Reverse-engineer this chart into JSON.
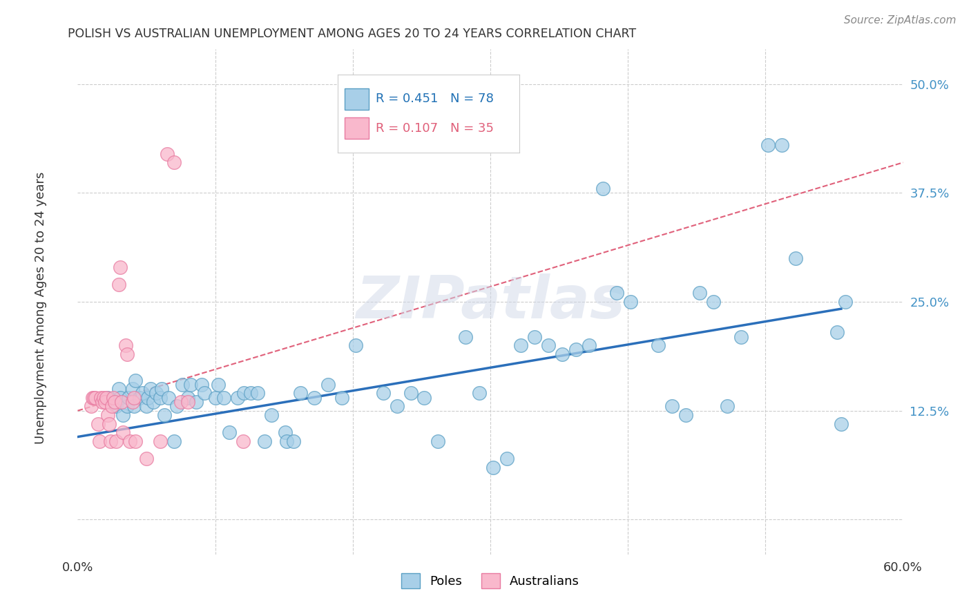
{
  "title": "POLISH VS AUSTRALIAN UNEMPLOYMENT AMONG AGES 20 TO 24 YEARS CORRELATION CHART",
  "source": "Source: ZipAtlas.com",
  "ylabel": "Unemployment Among Ages 20 to 24 years",
  "xlim": [
    0.0,
    0.6
  ],
  "ylim": [
    -0.04,
    0.54
  ],
  "xticks": [
    0.0,
    0.1,
    0.2,
    0.3,
    0.4,
    0.5,
    0.6
  ],
  "xticklabels": [
    "0.0%",
    "",
    "",
    "",
    "",
    "",
    "60.0%"
  ],
  "yticks": [
    0.0,
    0.125,
    0.25,
    0.375,
    0.5
  ],
  "yticklabels": [
    "",
    "12.5%",
    "25.0%",
    "37.5%",
    "50.0%"
  ],
  "background_color": "#ffffff",
  "grid_color": "#cccccc",
  "watermark": "ZIPatlas",
  "poles_color": "#a8cfe8",
  "poles_edge_color": "#5a9fc4",
  "australians_color": "#f9b8cc",
  "australians_edge_color": "#e87aa0",
  "poles_line_color": "#2b6fba",
  "australians_line_color": "#e0607a",
  "poles_line": {
    "x0": 0.0,
    "x1": 0.555,
    "y0": 0.095,
    "y1": 0.242
  },
  "australians_line": {
    "x0": 0.0,
    "x1": 0.6,
    "y0": 0.125,
    "y1": 0.41
  },
  "poles_scatter_x": [
    0.022,
    0.028,
    0.03,
    0.031,
    0.033,
    0.036,
    0.037,
    0.04,
    0.041,
    0.042,
    0.045,
    0.047,
    0.05,
    0.051,
    0.053,
    0.055,
    0.057,
    0.06,
    0.061,
    0.063,
    0.066,
    0.07,
    0.072,
    0.076,
    0.08,
    0.082,
    0.086,
    0.09,
    0.092,
    0.1,
    0.102,
    0.106,
    0.11,
    0.116,
    0.121,
    0.126,
    0.131,
    0.136,
    0.141,
    0.151,
    0.152,
    0.157,
    0.162,
    0.172,
    0.182,
    0.192,
    0.202,
    0.222,
    0.232,
    0.242,
    0.252,
    0.262,
    0.282,
    0.292,
    0.302,
    0.312,
    0.322,
    0.332,
    0.342,
    0.352,
    0.362,
    0.372,
    0.382,
    0.392,
    0.402,
    0.422,
    0.432,
    0.442,
    0.452,
    0.462,
    0.472,
    0.482,
    0.502,
    0.512,
    0.522,
    0.552,
    0.555,
    0.558
  ],
  "poles_scatter_y": [
    0.14,
    0.13,
    0.15,
    0.14,
    0.12,
    0.13,
    0.14,
    0.15,
    0.13,
    0.16,
    0.14,
    0.145,
    0.13,
    0.14,
    0.15,
    0.135,
    0.145,
    0.14,
    0.15,
    0.12,
    0.14,
    0.09,
    0.13,
    0.155,
    0.14,
    0.155,
    0.135,
    0.155,
    0.145,
    0.14,
    0.155,
    0.14,
    0.1,
    0.14,
    0.145,
    0.145,
    0.145,
    0.09,
    0.12,
    0.1,
    0.09,
    0.09,
    0.145,
    0.14,
    0.155,
    0.14,
    0.2,
    0.145,
    0.13,
    0.145,
    0.14,
    0.09,
    0.21,
    0.145,
    0.06,
    0.07,
    0.2,
    0.21,
    0.2,
    0.19,
    0.195,
    0.2,
    0.38,
    0.26,
    0.25,
    0.2,
    0.13,
    0.12,
    0.26,
    0.25,
    0.13,
    0.21,
    0.43,
    0.43,
    0.3,
    0.215,
    0.11,
    0.25
  ],
  "australians_scatter_x": [
    0.01,
    0.011,
    0.012,
    0.013,
    0.015,
    0.016,
    0.017,
    0.018,
    0.019,
    0.02,
    0.021,
    0.022,
    0.023,
    0.024,
    0.025,
    0.026,
    0.027,
    0.028,
    0.03,
    0.031,
    0.032,
    0.033,
    0.035,
    0.036,
    0.038,
    0.04,
    0.041,
    0.042,
    0.05,
    0.06,
    0.065,
    0.07,
    0.075,
    0.08,
    0.12
  ],
  "australians_scatter_y": [
    0.13,
    0.14,
    0.14,
    0.14,
    0.11,
    0.09,
    0.14,
    0.135,
    0.14,
    0.135,
    0.14,
    0.12,
    0.11,
    0.09,
    0.13,
    0.14,
    0.135,
    0.09,
    0.27,
    0.29,
    0.135,
    0.1,
    0.2,
    0.19,
    0.09,
    0.135,
    0.14,
    0.09,
    0.07,
    0.09,
    0.42,
    0.41,
    0.135,
    0.135,
    0.09
  ]
}
